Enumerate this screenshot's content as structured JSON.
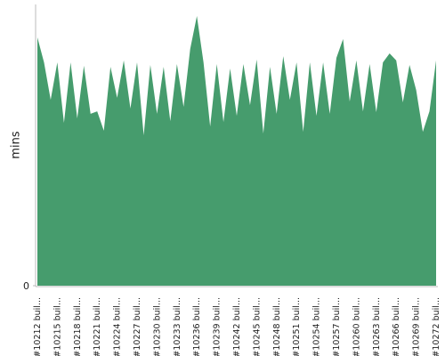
{
  "chart_data": {
    "type": "area",
    "y_label": "mins",
    "color": "#469c6d",
    "categories": [
      "#10212 buil...",
      null,
      null,
      "#10215 buil...",
      null,
      null,
      "#10218 buil...",
      null,
      null,
      "#10221 buil...",
      null,
      null,
      "#10224 buil...",
      null,
      null,
      "#10227 buil...",
      null,
      null,
      "#10230 buil...",
      null,
      null,
      "#10233 buil...",
      null,
      null,
      "#10236 buil...",
      null,
      null,
      "#10239 buil...",
      null,
      null,
      "#10242 buil...",
      null,
      null,
      "#10245 buil...",
      null,
      null,
      "#10248 buil...",
      null,
      null,
      "#10251 buil...",
      null,
      null,
      "#10254 buil...",
      null,
      null,
      "#10257 buil...",
      null,
      null,
      "#10260 buil...",
      null,
      null,
      "#10263 buil...",
      null,
      null,
      "#10266 buil...",
      null,
      null,
      "#10269 buil...",
      null,
      null,
      "#10272 buil..."
    ],
    "values": [
      88.3,
      79.4,
      66.1,
      79.4,
      57.9,
      79.4,
      59.5,
      78.2,
      61.1,
      62.0,
      55.1,
      77.8,
      66.8,
      80.1,
      63.0,
      79.4,
      53.5,
      78.5,
      61.1,
      77.8,
      58.5,
      78.8,
      63.6,
      84.2,
      95.9,
      79.4,
      56.6,
      78.8,
      58.2,
      77.2,
      60.4,
      78.8,
      64.2,
      80.4,
      54.1,
      77.8,
      61.1,
      81.6,
      66.1,
      79.4,
      54.7,
      79.4,
      60.4,
      79.4,
      61.1,
      81.0,
      87.7,
      65.5,
      80.1,
      62.0,
      78.8,
      61.7,
      79.4,
      82.6,
      80.1,
      65.2,
      78.5,
      69.6,
      54.7,
      62.0,
      80.1
    ],
    "ylim": [
      0,
      100
    ],
    "yticks": [
      0
    ]
  }
}
